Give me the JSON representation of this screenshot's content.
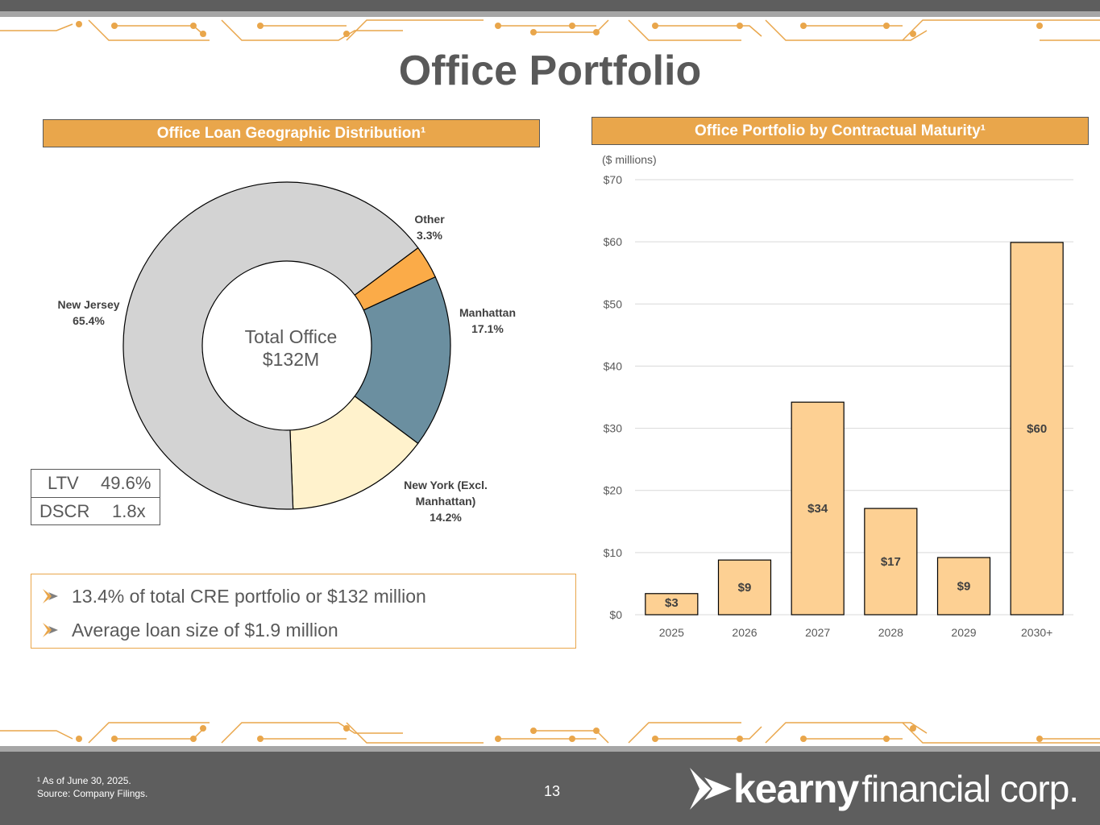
{
  "page": {
    "title": "Office Portfolio",
    "page_number": "13",
    "footnote_line1": "¹ As of June 30, 2025.",
    "footnote_line2": "Source: Company Filings.",
    "logo_bold": "kearny",
    "logo_light": "financial corp."
  },
  "left_panel": {
    "heading": "Office Loan Geographic Distribution¹",
    "center_line1": "Total Office",
    "center_line2": "$132M",
    "metrics": [
      {
        "label": "LTV",
        "value": "49.6%"
      },
      {
        "label": "DSCR",
        "value": "1.8x"
      }
    ],
    "bullets": [
      "13.4% of total CRE portfolio or $132 million",
      "Average loan size of $1.9 million"
    ]
  },
  "right_panel": {
    "heading": "Office Portfolio by Contractual Maturity¹",
    "units": "($ millions)"
  },
  "colors": {
    "accent_orange": "#e9a64b",
    "bar_fill": "#fdd093",
    "new_jersey": "#d3d3d3",
    "other": "#fbab48",
    "manhattan": "#6b8fa0",
    "new_york": "#fff2cc"
  },
  "chart_data": [
    {
      "type": "pie",
      "subtype": "donut",
      "title": "Office Loan Geographic Distribution¹",
      "slices": [
        {
          "label_line1": "Other",
          "label_line2": "",
          "value_label": "3.3%",
          "value": 3.3,
          "color": "#fbab48"
        },
        {
          "label_line1": "Manhattan",
          "label_line2": "",
          "value_label": "17.1%",
          "value": 17.1,
          "color": "#6b8fa0"
        },
        {
          "label_line1": "New York  (Excl.",
          "label_line2": "Manhattan)",
          "value_label": "14.2%",
          "value": 14.2,
          "color": "#fff2cc"
        },
        {
          "label_line1": "New Jersey",
          "label_line2": "",
          "value_label": "65.4%",
          "value": 65.4,
          "color": "#d3d3d3"
        }
      ]
    },
    {
      "type": "bar",
      "title": "Office Portfolio by Contractual Maturity¹",
      "ylabel": "($ millions)",
      "categories": [
        "2025",
        "2026",
        "2027",
        "2028",
        "2029",
        "2030+"
      ],
      "values": [
        3.4,
        8.8,
        34.2,
        17.1,
        9.2,
        59.9
      ],
      "data_labels": [
        "$3",
        "$9",
        "$34",
        "$17",
        "$9",
        "$60"
      ],
      "ylim": [
        0,
        70
      ],
      "yticks": [
        0,
        10,
        20,
        30,
        40,
        50,
        60,
        70
      ],
      "ytick_labels": [
        "$0",
        "$10",
        "$20",
        "$30",
        "$40",
        "$50",
        "$60",
        "$70"
      ],
      "grid": true,
      "legend": "none"
    }
  ]
}
